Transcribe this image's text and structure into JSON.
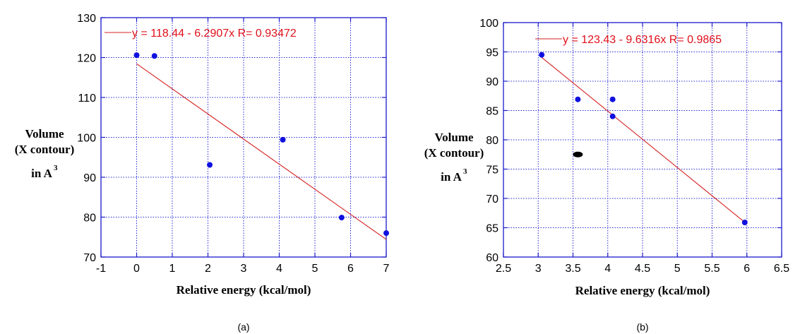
{
  "colors": {
    "frame": "#1a1acc",
    "grid": "#2a2ad6",
    "fit": "#d42020",
    "point": "#1010e0",
    "outlier": "#000000",
    "equation": "#e0101a"
  },
  "chart_data": [
    {
      "type": "scatter",
      "caption": "(a)",
      "xlabel": "Relative energy (kcal/mol)",
      "ylabel_lines": [
        "Volume",
        "(X contour)",
        "in A"
      ],
      "ylabel_superscript": "3",
      "xlim": [
        -1,
        7
      ],
      "ylim": [
        70,
        130
      ],
      "xticks": [
        "-1",
        "0",
        "1",
        "2",
        "3",
        "4",
        "5",
        "6",
        "7"
      ],
      "yticks": [
        "70",
        "80",
        "90",
        "100",
        "110",
        "120",
        "130"
      ],
      "grid": true,
      "series": [
        {
          "values": [
            {
              "x": 0.0,
              "y": 120.6
            },
            {
              "x": 0.5,
              "y": 120.4
            },
            {
              "x": 2.05,
              "y": 93.1
            },
            {
              "x": 4.1,
              "y": 99.4
            },
            {
              "x": 5.75,
              "y": 79.9
            },
            {
              "x": 7.0,
              "y": 76.0
            }
          ]
        }
      ],
      "fit": {
        "intercept": 118.44,
        "slope": -6.2907,
        "x_range": [
          0,
          7
        ]
      },
      "fit_label": "y = 118.44 - 6.2907x   R= 0.93472"
    },
    {
      "type": "scatter",
      "caption": "(b)",
      "xlabel": "Relative energy (kcal/mol)",
      "ylabel_lines": [
        "Volume",
        "(X contour)",
        "in A"
      ],
      "ylabel_superscript": "3",
      "xlim": [
        2.5,
        6.5
      ],
      "ylim": [
        60,
        100
      ],
      "xticks": [
        "2.5",
        "3",
        "3.5",
        "4",
        "4.5",
        "5",
        "5.5",
        "6",
        "6.5"
      ],
      "yticks": [
        "60",
        "65",
        "70",
        "75",
        "80",
        "85",
        "90",
        "95",
        "100"
      ],
      "grid": true,
      "series": [
        {
          "values": [
            {
              "x": 3.05,
              "y": 94.5
            },
            {
              "x": 3.57,
              "y": 86.9
            },
            {
              "x": 4.07,
              "y": 86.9
            },
            {
              "x": 4.07,
              "y": 84.0
            },
            {
              "x": 5.97,
              "y": 65.9
            }
          ]
        }
      ],
      "outlier": {
        "x": 3.57,
        "y": 77.5
      },
      "fit": {
        "intercept": 123.43,
        "slope": -9.6316,
        "x_range": [
          3.05,
          5.97
        ]
      },
      "fit_label": "y = 123.43 - 9.6316x   R= 0.9865"
    }
  ]
}
